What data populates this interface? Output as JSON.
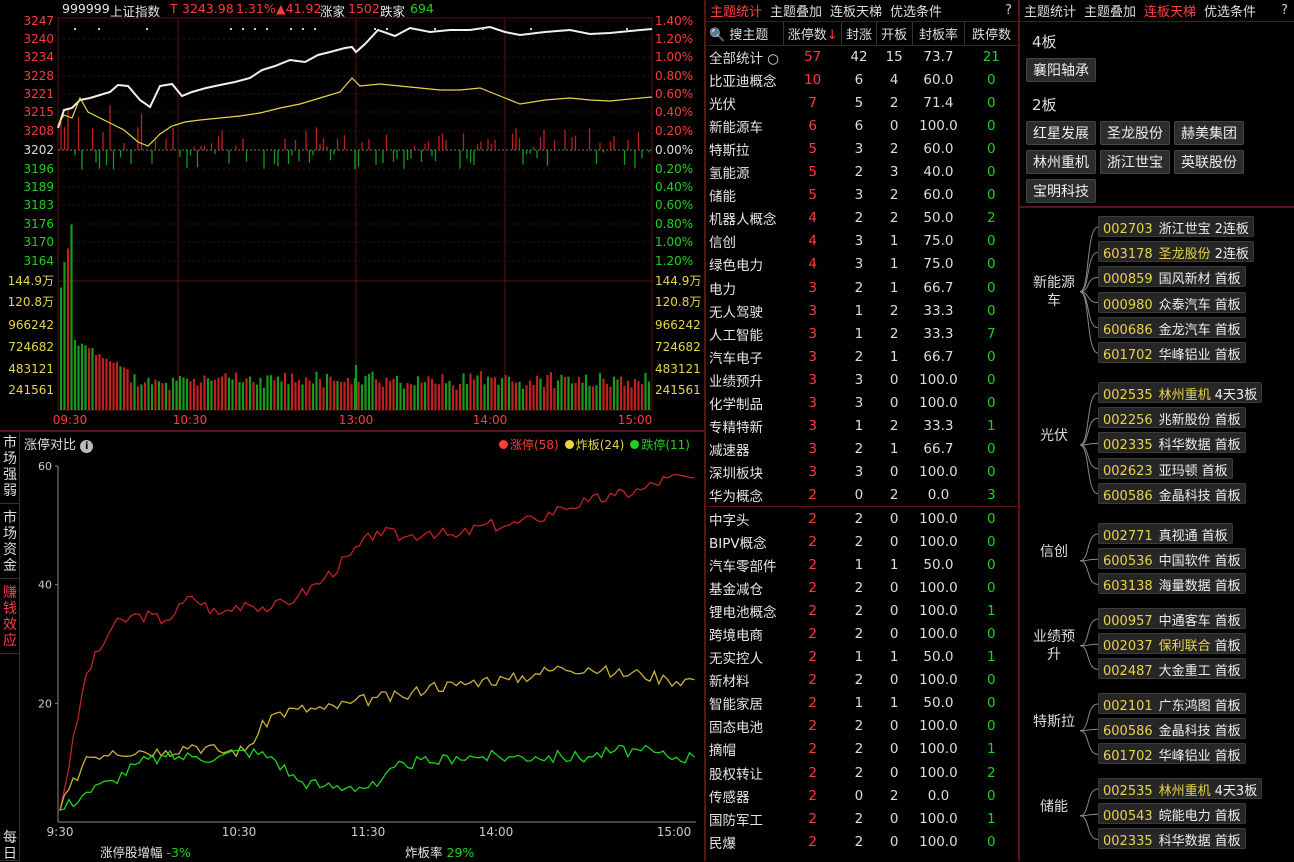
{
  "index_header": {
    "code": "999999",
    "name": "上证指数",
    "t": "T",
    "price": "3243.98",
    "pct": "1.31%",
    "chg": "▲41.92",
    "up_label": "涨家",
    "up_count": "1502",
    "down_label": "跌家",
    "down_count": "694"
  },
  "price_axis_left": [
    "3247",
    "3240",
    "3234",
    "3228",
    "3221",
    "3215",
    "3208",
    "3202",
    "3196",
    "3189",
    "3183",
    "3176",
    "3170",
    "3164"
  ],
  "price_axis_right": [
    "1.40%",
    "1.20%",
    "1.00%",
    "0.80%",
    "0.60%",
    "0.40%",
    "0.20%",
    "0.00%",
    "0.20%",
    "0.40%",
    "0.60%",
    "0.80%",
    "1.00%",
    "1.20%"
  ],
  "vol_axis": [
    "144.9万",
    "120.8万",
    "966242",
    "724682",
    "483121",
    "241561"
  ],
  "time_axis": [
    "09:30",
    "10:30",
    "13:00",
    "14:00",
    "15:00"
  ],
  "lower_chart": {
    "side_tabs": [
      {
        "label": "市场强弱",
        "active": false
      },
      {
        "label": "市场资金",
        "active": false
      },
      {
        "label": "赚钱效应",
        "active": true
      },
      {
        "label": "每日",
        "active": false
      }
    ],
    "title": "涨停对比",
    "legend": [
      {
        "name": "涨停",
        "count": "(58)",
        "color": "#ff3b3b"
      },
      {
        "name": "炸板",
        "count": "(24)",
        "color": "#e8d44a"
      },
      {
        "name": "跌停",
        "count": "(11)",
        "color": "#1fd21f"
      }
    ],
    "y_ticks": [
      "60",
      "40",
      "20"
    ],
    "x_ticks": [
      "9:30",
      "10:30",
      "11:30",
      "14:00",
      "15:00"
    ],
    "footer": {
      "amp_label": "涨停股增幅",
      "amp_value": "-3%",
      "rate_label": "炸板率",
      "rate_value": "29%"
    }
  },
  "chart_data": {
    "type": "line",
    "x": [
      "9:30",
      "9:40",
      "9:50",
      "10:00",
      "10:10",
      "10:20",
      "10:30",
      "10:40",
      "10:50",
      "11:00",
      "11:10",
      "11:20",
      "11:30",
      "13:10",
      "13:20",
      "13:30",
      "13:40",
      "13:50",
      "14:00",
      "14:10",
      "14:20",
      "14:30",
      "14:40",
      "14:50",
      "15:00"
    ],
    "ylim": [
      0,
      60
    ],
    "series": [
      {
        "name": "涨停",
        "color": "#c22222",
        "values": [
          2,
          25,
          33,
          35,
          34,
          38,
          35,
          37,
          36,
          38,
          41,
          45,
          49,
          48,
          49,
          48,
          50,
          50,
          51,
          53,
          54,
          55,
          56,
          58,
          58
        ]
      },
      {
        "name": "炸板",
        "color": "#c9b03a",
        "values": [
          2,
          11,
          12,
          12,
          12,
          13,
          12,
          12,
          18,
          19,
          19,
          20,
          21,
          21,
          23,
          23,
          24,
          24,
          25,
          26,
          26,
          25,
          25,
          24,
          24
        ]
      },
      {
        "name": "跌停",
        "color": "#1fd21f",
        "values": [
          2,
          5,
          7,
          10,
          11,
          11,
          11,
          12,
          11,
          7,
          6,
          6,
          6,
          10,
          10,
          11,
          11,
          11,
          11,
          11,
          11,
          12,
          12,
          11,
          11
        ]
      }
    ]
  },
  "mid_panel": {
    "tabs": [
      {
        "label": "主题统计",
        "active": true
      },
      {
        "label": "主题叠加",
        "active": false
      },
      {
        "label": "连板天梯",
        "active": false
      },
      {
        "label": "优选条件",
        "active": false
      }
    ],
    "help": "?",
    "search_label": "搜主题",
    "columns": [
      "涨停数",
      "封涨",
      "开板",
      "封板率",
      "跌停数"
    ],
    "sort_mark": "↓",
    "total": {
      "name": "全部统计",
      "vals": [
        "57",
        "42",
        "15",
        "73.7",
        "21"
      ]
    },
    "rows": [
      [
        "比亚迪概念",
        "10",
        "6",
        "4",
        "60.0",
        "0"
      ],
      [
        "光伏",
        "7",
        "5",
        "2",
        "71.4",
        "0"
      ],
      [
        "新能源车",
        "6",
        "6",
        "0",
        "100.0",
        "0"
      ],
      [
        "特斯拉",
        "5",
        "3",
        "2",
        "60.0",
        "0"
      ],
      [
        "氢能源",
        "5",
        "2",
        "3",
        "40.0",
        "0"
      ],
      [
        "储能",
        "5",
        "3",
        "2",
        "60.0",
        "0"
      ],
      [
        "机器人概念",
        "4",
        "2",
        "2",
        "50.0",
        "2"
      ],
      [
        "信创",
        "4",
        "3",
        "1",
        "75.0",
        "0"
      ],
      [
        "绿色电力",
        "4",
        "3",
        "1",
        "75.0",
        "0"
      ],
      [
        "电力",
        "3",
        "2",
        "1",
        "66.7",
        "0"
      ],
      [
        "无人驾驶",
        "3",
        "1",
        "2",
        "33.3",
        "0"
      ],
      [
        "人工智能",
        "3",
        "1",
        "2",
        "33.3",
        "7"
      ],
      [
        "汽车电子",
        "3",
        "2",
        "1",
        "66.7",
        "0"
      ],
      [
        "业绩预升",
        "3",
        "3",
        "0",
        "100.0",
        "0"
      ],
      [
        "化学制品",
        "3",
        "3",
        "0",
        "100.0",
        "0"
      ],
      [
        "专精特新",
        "3",
        "1",
        "2",
        "33.3",
        "1"
      ],
      [
        "减速器",
        "3",
        "2",
        "1",
        "66.7",
        "0"
      ],
      [
        "深圳板块",
        "3",
        "3",
        "0",
        "100.0",
        "0"
      ],
      [
        "华为概念",
        "2",
        "0",
        "2",
        "0.0",
        "3"
      ],
      [
        "中字头",
        "2",
        "2",
        "0",
        "100.0",
        "0"
      ],
      [
        "BIPV概念",
        "2",
        "2",
        "0",
        "100.0",
        "0"
      ],
      [
        "汽车零部件",
        "2",
        "1",
        "1",
        "50.0",
        "0"
      ],
      [
        "基金减仓",
        "2",
        "2",
        "0",
        "100.0",
        "0"
      ],
      [
        "锂电池概念",
        "2",
        "2",
        "0",
        "100.0",
        "1"
      ],
      [
        "跨境电商",
        "2",
        "2",
        "0",
        "100.0",
        "0"
      ],
      [
        "无实控人",
        "2",
        "1",
        "1",
        "50.0",
        "1"
      ],
      [
        "新材料",
        "2",
        "2",
        "0",
        "100.0",
        "0"
      ],
      [
        "智能家居",
        "2",
        "1",
        "1",
        "50.0",
        "0"
      ],
      [
        "固态电池",
        "2",
        "2",
        "0",
        "100.0",
        "0"
      ],
      [
        "摘帽",
        "2",
        "2",
        "0",
        "100.0",
        "1"
      ],
      [
        "股权转让",
        "2",
        "2",
        "0",
        "100.0",
        "2"
      ],
      [
        "传感器",
        "2",
        "0",
        "2",
        "0.0",
        "0"
      ],
      [
        "国防军工",
        "2",
        "2",
        "0",
        "100.0",
        "1"
      ],
      [
        "民爆",
        "2",
        "2",
        "0",
        "100.0",
        "0"
      ]
    ]
  },
  "right_panel": {
    "tabs": [
      {
        "label": "主题统计",
        "active": false
      },
      {
        "label": "主题叠加",
        "active": false
      },
      {
        "label": "连板天梯",
        "active": true
      },
      {
        "label": "优选条件",
        "active": false
      }
    ],
    "help": "?",
    "ladder": [
      {
        "level": "4板",
        "stocks": [
          "襄阳轴承"
        ]
      },
      {
        "level": "2板",
        "stocks": [
          "红星发展",
          "圣龙股份",
          "赫美集团",
          "林州重机",
          "浙江世宝",
          "英联股份",
          "宝明科技"
        ]
      }
    ],
    "groups": [
      {
        "name": "新能源车",
        "stocks": [
          [
            "002703",
            "浙江世宝",
            "2连板",
            false
          ],
          [
            "603178",
            "圣龙股份",
            "2连板",
            true
          ],
          [
            "000859",
            "国风新材",
            "首板",
            false
          ],
          [
            "000980",
            "众泰汽车",
            "首板",
            false
          ],
          [
            "600686",
            "金龙汽车",
            "首板",
            false
          ],
          [
            "601702",
            "华峰铝业",
            "首板",
            false
          ]
        ]
      },
      {
        "name": "光伏",
        "stocks": [
          [
            "002535",
            "林州重机",
            "4天3板",
            true
          ],
          [
            "002256",
            "兆新股份",
            "首板",
            false
          ],
          [
            "002335",
            "科华数据",
            "首板",
            false
          ],
          [
            "002623",
            "亚玛顿",
            "首板",
            false
          ],
          [
            "600586",
            "金晶科技",
            "首板",
            false
          ]
        ]
      },
      {
        "name": "信创",
        "stocks": [
          [
            "002771",
            "真视通",
            "首板",
            false
          ],
          [
            "600536",
            "中国软件",
            "首板",
            false
          ],
          [
            "603138",
            "海量数据",
            "首板",
            false
          ]
        ]
      },
      {
        "name": "业绩预升",
        "stocks": [
          [
            "000957",
            "中通客车",
            "首板",
            false
          ],
          [
            "002037",
            "保利联合",
            "首板",
            true
          ],
          [
            "002487",
            "大金重工",
            "首板",
            false
          ]
        ]
      },
      {
        "name": "特斯拉",
        "stocks": [
          [
            "002101",
            "广东鸿图",
            "首板",
            false
          ],
          [
            "600586",
            "金晶科技",
            "首板",
            false
          ],
          [
            "601702",
            "华峰铝业",
            "首板",
            false
          ]
        ]
      },
      {
        "name": "储能",
        "stocks": [
          [
            "002535",
            "林州重机",
            "4天3板",
            true
          ],
          [
            "000543",
            "皖能电力",
            "首板",
            false
          ],
          [
            "002335",
            "科华数据",
            "首板",
            false
          ]
        ]
      }
    ]
  }
}
